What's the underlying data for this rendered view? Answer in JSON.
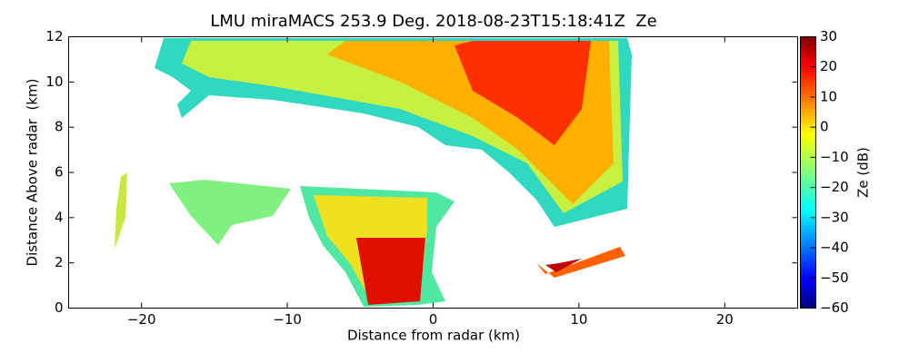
{
  "chart_data": {
    "type": "image",
    "title": "LMU miraMACS 253.9 Deg. 2018-08-23T15:18:41Z  Ze",
    "x_label": "Distance from radar (km)",
    "y_label": "Distance Above radar  (km)",
    "xlim": [
      -25,
      25
    ],
    "xticks": [
      {
        "value": -20,
        "label": "−20"
      },
      {
        "value": -10,
        "label": "−10"
      },
      0,
      10,
      20
    ],
    "ylim": [
      0,
      12
    ],
    "yticks": [
      0,
      2,
      4,
      6,
      8,
      10,
      12
    ],
    "colorbar": {
      "label": "Ze (dB)",
      "colormap": "jet",
      "lim": [
        -60,
        30
      ],
      "ticks": [
        {
          "value": -60,
          "label": "−60"
        },
        {
          "value": -50,
          "label": "−50"
        },
        {
          "value": -40,
          "label": "−40"
        },
        {
          "value": -30,
          "label": "−30"
        },
        {
          "value": -20,
          "label": "−20"
        },
        {
          "value": -10,
          "label": "−10"
        },
        0,
        10,
        20,
        30
      ]
    }
  }
}
